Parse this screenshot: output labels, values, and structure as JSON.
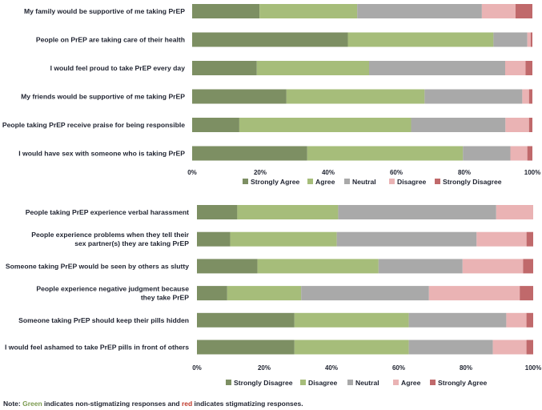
{
  "colors": {
    "c1": "#7d8f63",
    "c2": "#a6bd7a",
    "c3": "#a9a9a9",
    "c4": "#eab3b4",
    "c5": "#c0696b",
    "green_text": "#7a9a4e",
    "red_text": "#c0392b"
  },
  "chart_data": [
    {
      "type": "bar",
      "orientation": "horizontal",
      "stacked": true,
      "categories": [
        "My family would be supportive of me taking PrEP",
        "People on PrEP are taking care of their health",
        "I would feel proud to take PrEP every day",
        "My friends would be supportive of me taking PrEP",
        "People taking PrEP receive praise for being responsible",
        "I would have sex with someone who is taking PrEP"
      ],
      "series": [
        {
          "name": "Strongly Agree",
          "values": [
            20,
            46,
            19,
            28,
            14,
            34
          ]
        },
        {
          "name": "Agree",
          "values": [
            29,
            43,
            33,
            41,
            51,
            46
          ]
        },
        {
          "name": "Neutral",
          "values": [
            37,
            10,
            40,
            29,
            28,
            14
          ]
        },
        {
          "name": "Disagree",
          "values": [
            10,
            1,
            6,
            2,
            7,
            5
          ]
        },
        {
          "name": "Strongly Disagree",
          "values": [
            5,
            0.5,
            2,
            1,
            1,
            1.5
          ]
        }
      ],
      "xlim": [
        0,
        100
      ],
      "xticks": [
        "0%",
        "20%",
        "40%",
        "60%",
        "80%",
        "100%"
      ],
      "legend_position": "bottom"
    },
    {
      "type": "bar",
      "orientation": "horizontal",
      "stacked": true,
      "categories": [
        "People taking PrEP experience verbal harassment",
        "People experience problems when they tell their sex partner(s) they are taking PrEP",
        "Someone taking PrEP would be seen by others as slutty",
        "People experience negative judgment because they take PrEP",
        "Someone taking PrEP should keep their pills hidden",
        "I would feel ashamed to take PrEP pills in front of others"
      ],
      "category_lines": [
        [
          "People taking PrEP experience verbal harassment"
        ],
        [
          "People experience problems when they tell their",
          "sex partner(s) they are taking PrEP"
        ],
        [
          "Someone taking PrEP would be seen by others as slutty"
        ],
        [
          "People experience negative judgment because",
          "they take PrEP"
        ],
        [
          "Someone taking PrEP should keep their pills hidden"
        ],
        [
          "I would feel ashamed to take PrEP pills in front of others"
        ]
      ],
      "series": [
        {
          "name": "Strongly Disagree",
          "values": [
            12,
            10,
            18,
            9,
            29,
            29
          ]
        },
        {
          "name": "Disagree",
          "values": [
            30,
            32,
            36,
            22,
            34,
            34
          ]
        },
        {
          "name": "Neutral",
          "values": [
            47,
            42,
            25,
            38,
            29,
            25
          ]
        },
        {
          "name": "Agree",
          "values": [
            11,
            15,
            18,
            27,
            6,
            10
          ]
        },
        {
          "name": "Strongly Agree",
          "values": [
            0,
            2,
            3,
            4,
            2,
            2
          ]
        }
      ],
      "xlim": [
        0,
        100
      ],
      "xticks": [
        "0%",
        "20%",
        "40%",
        "60%",
        "80%",
        "100%"
      ],
      "legend_position": "bottom"
    }
  ],
  "note": {
    "prefix": "Note: ",
    "green_word": "Green",
    "middle": " indicates non-stigmatizing responses and ",
    "red_word": "red",
    "suffix": " indicates stigmatizing responses."
  }
}
